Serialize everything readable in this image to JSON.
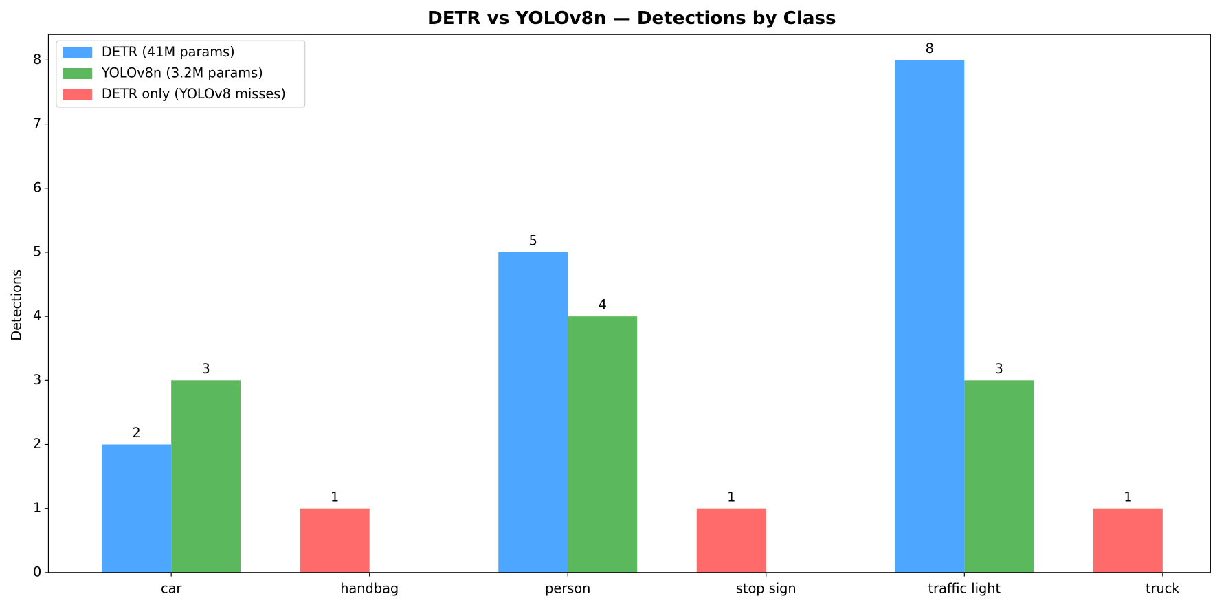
{
  "chart_data": {
    "type": "bar",
    "title": "DETR vs YOLOv8n — Detections by Class",
    "ylabel": "Detections",
    "categories": [
      "car",
      "handbag",
      "person",
      "stop sign",
      "traffic light",
      "truck"
    ],
    "series": [
      {
        "name": "DETR (41M params)",
        "color": "#4da6ff",
        "values": [
          2,
          null,
          5,
          null,
          8,
          null
        ]
      },
      {
        "name": "YOLOv8n (3.2M params)",
        "color": "#5cb85c",
        "values": [
          3,
          null,
          4,
          null,
          3,
          null
        ]
      },
      {
        "name": "DETR only (YOLOv8 misses)",
        "color": "#ff6b6b",
        "values": [
          null,
          1,
          null,
          1,
          null,
          1
        ]
      }
    ],
    "ylim": [
      0,
      8.4
    ],
    "yticks": [
      0,
      1,
      2,
      3,
      4,
      5,
      6,
      7,
      8
    ],
    "legend": "upper left",
    "value_labels_shown": true
  }
}
